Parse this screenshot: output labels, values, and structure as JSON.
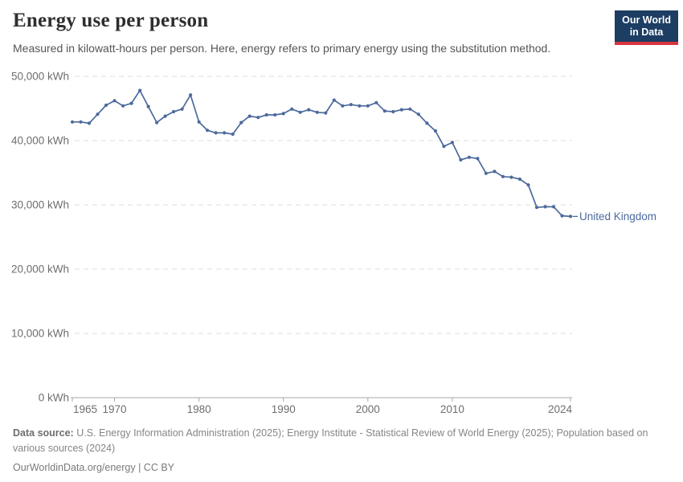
{
  "header": {
    "title": "Energy use per person",
    "subtitle": "Measured in kilowatt-hours per person. Here, energy refers to primary energy using the substitution method."
  },
  "logo": {
    "line1": "Our World",
    "line2": "in Data",
    "bg_color": "#1d3d63",
    "accent_color": "#d8353f"
  },
  "chart_data": {
    "type": "line",
    "title": "Energy use per person",
    "xlabel": "",
    "ylabel": "kWh per person",
    "xlim": [
      1965,
      2024
    ],
    "ylim": [
      0,
      50000
    ],
    "x_ticks": [
      1965,
      1970,
      1980,
      1990,
      2000,
      2010,
      2024
    ],
    "y_ticks": [
      0,
      10000,
      20000,
      30000,
      40000,
      50000
    ],
    "y_tick_suffix": " kWh",
    "grid": "horizontal-dashed",
    "legend_position": "end-of-line-label",
    "end_label": "United Kingdom",
    "series": [
      {
        "name": "United Kingdom",
        "color": "#4c6a9c",
        "x": [
          1965,
          1966,
          1967,
          1968,
          1969,
          1970,
          1971,
          1972,
          1973,
          1974,
          1975,
          1976,
          1977,
          1978,
          1979,
          1980,
          1981,
          1982,
          1983,
          1984,
          1985,
          1986,
          1987,
          1988,
          1989,
          1990,
          1991,
          1992,
          1993,
          1994,
          1995,
          1996,
          1997,
          1998,
          1999,
          2000,
          2001,
          2002,
          2003,
          2004,
          2005,
          2006,
          2007,
          2008,
          2009,
          2010,
          2011,
          2012,
          2013,
          2014,
          2015,
          2016,
          2017,
          2018,
          2019,
          2020,
          2021,
          2022,
          2023,
          2024
        ],
        "values": [
          42900,
          42900,
          42700,
          44100,
          45500,
          46200,
          45400,
          45800,
          47800,
          45300,
          42800,
          43800,
          44500,
          44900,
          47100,
          42900,
          41600,
          41200,
          41200,
          41000,
          42800,
          43800,
          43600,
          44000,
          44000,
          44200,
          44900,
          44400,
          44800,
          44400,
          44300,
          46300,
          45400,
          45600,
          45400,
          45400,
          45900,
          44600,
          44500,
          44800,
          44900,
          44100,
          42700,
          41500,
          39100,
          39700,
          37000,
          37400,
          37200,
          34900,
          35200,
          34400,
          34300,
          34000,
          33100,
          29600,
          29700,
          29700,
          28300,
          28200
        ]
      }
    ]
  },
  "footer": {
    "datasource_label": "Data source:",
    "datasource_text": " U.S. Energy Information Administration (2025); Energy Institute - Statistical Review of World Energy (2025); Population based on various sources (2024)",
    "link_text": "OurWorldinData.org/energy | CC BY"
  }
}
